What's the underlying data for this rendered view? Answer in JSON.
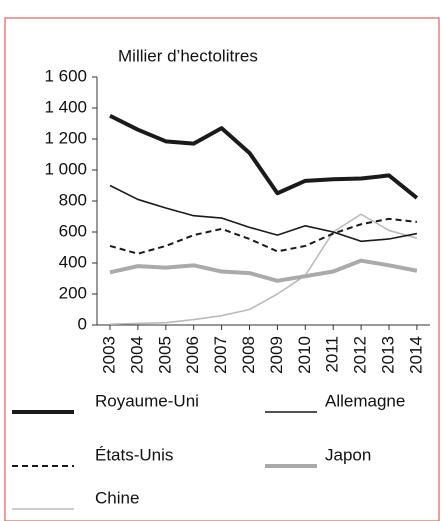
{
  "chart_data": {
    "type": "line",
    "ylabel": "Millier d’hectolitres",
    "categories": [
      "2003",
      "2004",
      "2005",
      "2006",
      "2007",
      "2008",
      "2009",
      "2010",
      "2011",
      "2012",
      "2013",
      "2014"
    ],
    "ylim": [
      0,
      1600
    ],
    "yticks": [
      0,
      200,
      400,
      600,
      800,
      {
        "value": 1000,
        "label": "1 000"
      },
      {
        "value": 1200,
        "label": "1 200"
      },
      {
        "value": 1400,
        "label": "1 400"
      },
      {
        "value": 1600,
        "label": "1 600"
      }
    ],
    "series": [
      {
        "name": "Royaume-Uni",
        "color": "#1a1a1a",
        "width": 4,
        "dash": "none",
        "values": [
          1350,
          1260,
          1185,
          1170,
          1270,
          1110,
          850,
          930,
          940,
          945,
          965,
          820
        ]
      },
      {
        "name": "Allemagne",
        "color": "#1a1a1a",
        "width": 1.6,
        "dash": "none",
        "values": [
          900,
          810,
          755,
          705,
          690,
          630,
          580,
          640,
          600,
          540,
          555,
          590
        ]
      },
      {
        "name": "États-Unis",
        "color": "#1a1a1a",
        "width": 2,
        "dash": "6 4",
        "values": [
          510,
          460,
          510,
          580,
          620,
          555,
          475,
          510,
          590,
          650,
          685,
          665
        ]
      },
      {
        "name": "Japon",
        "color": "#aaaaaa",
        "width": 4,
        "dash": "none",
        "values": [
          340,
          380,
          370,
          385,
          345,
          335,
          285,
          315,
          345,
          415,
          385,
          350
        ]
      },
      {
        "name": "Chine",
        "color": "#bbbbbb",
        "width": 1.6,
        "dash": "none",
        "values": [
          5,
          10,
          15,
          35,
          60,
          100,
          200,
          320,
          600,
          715,
          610,
          560
        ]
      }
    ]
  }
}
